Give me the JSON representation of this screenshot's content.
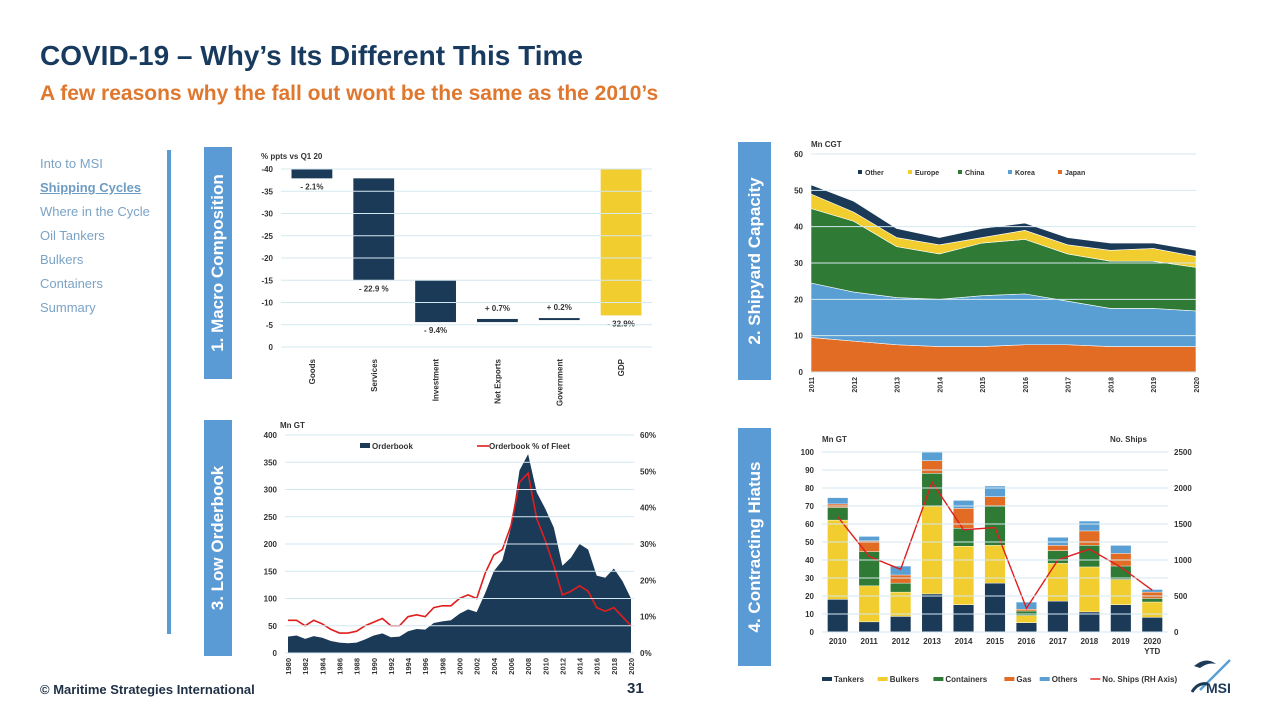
{
  "header": {
    "title": "COVID-19 – Why’s Its Different This Time",
    "subtitle": "A few reasons why the fall out wont be the same as the 2010’s"
  },
  "nav": {
    "items": [
      {
        "label": "Into to MSI",
        "active": false
      },
      {
        "label": "Shipping Cycles",
        "active": true
      },
      {
        "label": "Where in the Cycle",
        "active": false
      },
      {
        "label": "Oil Tankers",
        "active": false
      },
      {
        "label": "Bulkers",
        "active": false
      },
      {
        "label": "Containers",
        "active": false
      },
      {
        "label": "Summary",
        "active": false
      }
    ]
  },
  "sections": [
    "1. Macro Composition",
    "2. Shipyard Capacity",
    "3. Low Orderbook",
    "4. Contracting Hiatus"
  ],
  "footer": {
    "copyright": "© Maritime Strategies International",
    "page": "31",
    "logo_text": "MSI"
  },
  "colors": {
    "navy": "#1b3a57",
    "yellow": "#f1cd2f",
    "green": "#2f7a34",
    "lightblue": "#5a9fd4",
    "orange": "#e36c24",
    "red": "#e01e1e",
    "grid": "#d4e8f0"
  },
  "chart_data": [
    {
      "type": "bar",
      "subtype": "waterfall",
      "title": "1. Macro Composition",
      "ylabel": "% ppts vs Q1 20",
      "ylim": [
        -40,
        0
      ],
      "yticks": [
        0,
        -5,
        -10,
        -15,
        -20,
        -25,
        -30,
        -35,
        -40
      ],
      "categories": [
        "Goods",
        "Services",
        "Investment",
        "Net Exports",
        "Government",
        "GDP"
      ],
      "values": [
        -2.1,
        -22.9,
        -9.4,
        0.7,
        0.2,
        -32.9
      ],
      "labels": [
        "- 2.1%",
        "- 22.9 %",
        "- 9.4%",
        "+ 0.7%",
        "+ 0.2%",
        "- 32.9%"
      ]
    },
    {
      "type": "area",
      "stacked": true,
      "title": "2. Shipyard Capacity",
      "ylabel": "Mn CGT",
      "ylim": [
        0,
        60
      ],
      "yticks": [
        0,
        10,
        20,
        30,
        40,
        50,
        60
      ],
      "x": [
        "2011",
        "2012",
        "2013",
        "2014",
        "2015",
        "2016",
        "2017",
        "2018",
        "2019",
        "2020"
      ],
      "legend": [
        "Other",
        "Europe",
        "China",
        "Korea",
        "Japan"
      ],
      "series": [
        {
          "name": "Japan",
          "values": [
            9.5,
            8.5,
            7.5,
            7,
            7,
            7.5,
            7.5,
            7,
            7,
            7
          ]
        },
        {
          "name": "Korea",
          "values": [
            15,
            13.5,
            13,
            13,
            14,
            14,
            12,
            10.5,
            10.5,
            9.8
          ]
        },
        {
          "name": "China",
          "values": [
            20.5,
            19.5,
            14,
            12.5,
            14.5,
            15,
            13,
            13,
            13,
            12
          ]
        },
        {
          "name": "Europe",
          "values": [
            4,
            2.5,
            2.5,
            2.5,
            1.5,
            2.5,
            2.5,
            3,
            3.5,
            3
          ]
        },
        {
          "name": "Other",
          "values": [
            2.5,
            3,
            2.5,
            2,
            2.5,
            2,
            2,
            2,
            1.5,
            1.7
          ]
        }
      ]
    },
    {
      "type": "area",
      "title": "3. Low Orderbook",
      "ylabel": "Mn GT",
      "ylim": [
        0,
        400
      ],
      "yticks": [
        0,
        50,
        100,
        150,
        200,
        250,
        300,
        350,
        400
      ],
      "y2lim": [
        0,
        60
      ],
      "y2ticks": [
        "0%",
        "10%",
        "20%",
        "30%",
        "40%",
        "50%",
        "60%"
      ],
      "x": [
        "1980",
        "1981",
        "1982",
        "1983",
        "1984",
        "1985",
        "1986",
        "1987",
        "1988",
        "1989",
        "1990",
        "1991",
        "1992",
        "1993",
        "1994",
        "1995",
        "1996",
        "1997",
        "1998",
        "1999",
        "2000",
        "2001",
        "2002",
        "2003",
        "2004",
        "2005",
        "2006",
        "2007",
        "2008",
        "2009",
        "2010",
        "2011",
        "2012",
        "2013",
        "2014",
        "2015",
        "2016",
        "2017",
        "2018",
        "2019",
        "2020"
      ],
      "series": [
        {
          "name": "Orderbook",
          "values": [
            30,
            32,
            26,
            31,
            28,
            22,
            19,
            18,
            19,
            25,
            32,
            36,
            29,
            30,
            40,
            44,
            43,
            55,
            58,
            60,
            72,
            80,
            75,
            110,
            150,
            170,
            230,
            335,
            365,
            295,
            265,
            230,
            160,
            175,
            200,
            190,
            142,
            138,
            155,
            132,
            100
          ]
        },
        {
          "name": "Orderbook % of Fleet",
          "axis": "right",
          "values": [
            9,
            9,
            7.5,
            9,
            8,
            6.5,
            5.5,
            5.5,
            6,
            7.5,
            8.5,
            9.5,
            7.5,
            7.5,
            10,
            10.5,
            10,
            12.5,
            13,
            13,
            15,
            16,
            15,
            22,
            27,
            28.5,
            35,
            47,
            49.5,
            37,
            31,
            24,
            16,
            17,
            18.5,
            17,
            12.5,
            11.5,
            12.5,
            10,
            7.5
          ]
        }
      ]
    },
    {
      "type": "bar",
      "stacked": true,
      "title": "4. Contracting Hiatus",
      "ylabel": "Mn GT",
      "y2label": "No. Ships",
      "ylim": [
        0,
        100
      ],
      "yticks": [
        0,
        10,
        20,
        30,
        40,
        50,
        60,
        70,
        80,
        90,
        100
      ],
      "y2lim": [
        0,
        2500
      ],
      "y2ticks": [
        0,
        500,
        1000,
        1500,
        2000,
        2500
      ],
      "categories": [
        "2010",
        "2011",
        "2012",
        "2013",
        "2014",
        "2015",
        "2016",
        "2017",
        "2018",
        "2019",
        "2020 YTD"
      ],
      "series": [
        {
          "name": "Tankers",
          "values": [
            18,
            5.5,
            8.5,
            21,
            15,
            27,
            5,
            17,
            11,
            15,
            8
          ]
        },
        {
          "name": "Bulkers",
          "values": [
            44,
            20,
            13.5,
            49,
            32.5,
            21,
            4,
            21,
            25,
            14,
            8.5
          ]
        },
        {
          "name": "Containers",
          "values": [
            7,
            19,
            5,
            18,
            10,
            22,
            2.5,
            7,
            12,
            7.5,
            2
          ]
        },
        {
          "name": "Gas",
          "values": [
            2,
            6,
            4.5,
            7,
            11,
            5,
            1,
            3,
            8,
            7,
            3.5
          ]
        },
        {
          "name": "Others",
          "values": [
            3.5,
            2.5,
            5,
            5,
            4.5,
            6,
            4,
            4.5,
            5.5,
            4.5,
            1.5
          ]
        },
        {
          "name": "No. Ships (RH Axis)",
          "axis": "right",
          "values": [
            1600,
            1050,
            870,
            2080,
            1420,
            1450,
            330,
            1000,
            1150,
            900,
            580
          ]
        }
      ]
    }
  ]
}
